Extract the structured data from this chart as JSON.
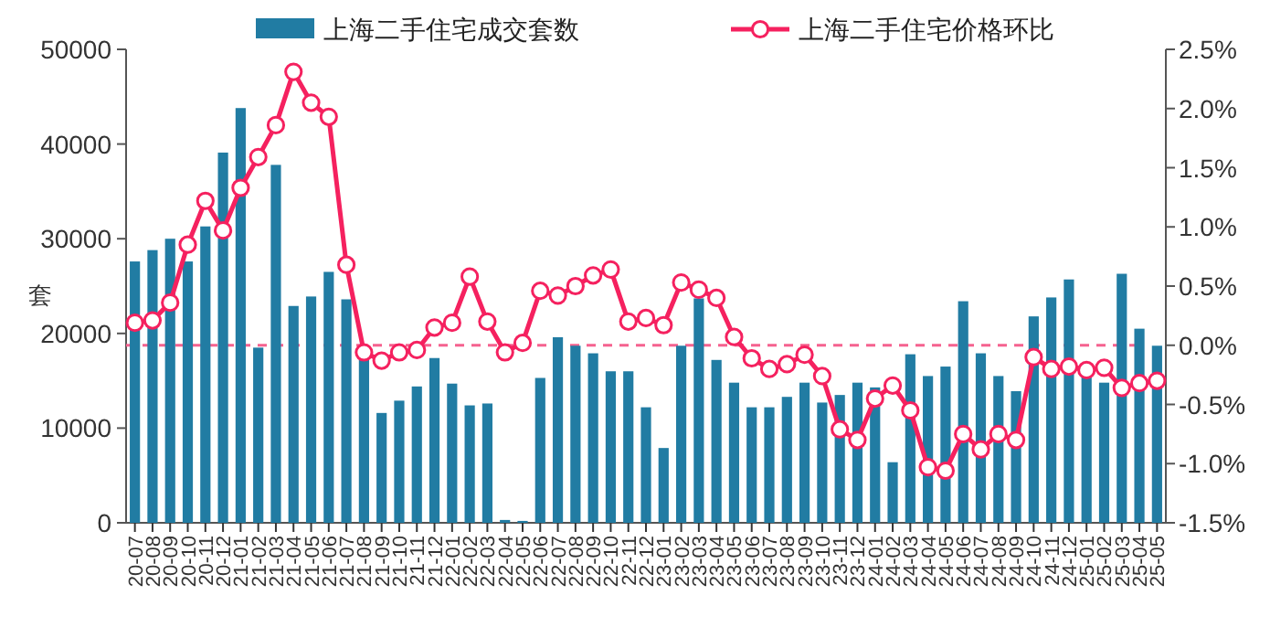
{
  "chart_data": {
    "type": "bar",
    "ylabel": "套",
    "legend": "top",
    "categories": [
      "20-07",
      "20-08",
      "20-09",
      "20-10",
      "20-11",
      "20-12",
      "21-01",
      "21-02",
      "21-03",
      "21-04",
      "21-05",
      "21-06",
      "21-07",
      "21-08",
      "21-09",
      "21-10",
      "21-11",
      "21-12",
      "22-01",
      "22-02",
      "22-03",
      "22-04",
      "22-05",
      "22-06",
      "22-07",
      "22-08",
      "22-09",
      "22-10",
      "22-11",
      "22-12",
      "23-01",
      "23-02",
      "23-03",
      "23-04",
      "23-05",
      "23-06",
      "23-07",
      "23-08",
      "23-09",
      "23-10",
      "23-11",
      "23-12",
      "24-01",
      "24-02",
      "24-03",
      "24-04",
      "24-05",
      "24-06",
      "24-07",
      "24-08",
      "24-09",
      "24-10",
      "24-11",
      "24-12",
      "25-01",
      "25-02",
      "25-03",
      "25-04",
      "25-05"
    ],
    "series": [
      {
        "name": "上海二手住宅成交套数",
        "color": "#217ca3",
        "values": [
          27600,
          28800,
          30000,
          27600,
          31300,
          39100,
          43800,
          18500,
          37800,
          22900,
          23900,
          26500,
          23600,
          17500,
          11600,
          12900,
          14400,
          17400,
          14700,
          12400,
          12600,
          300,
          200,
          15300,
          19600,
          18700,
          17900,
          16000,
          16000,
          12200,
          7900,
          18700,
          23700,
          17200,
          14800,
          12200,
          12200,
          13300,
          14800,
          12700,
          13500,
          14800,
          14300,
          6400,
          17800,
          15500,
          16500,
          23400,
          17900,
          15500,
          13900,
          21800,
          23800,
          25700,
          15800,
          14800,
          26300,
          20500,
          18700
        ]
      },
      {
        "name": "上海二手住宅价格环比",
        "type": "line",
        "axis": "y2",
        "marker": "circle",
        "color": "#f5215f",
        "values": [
          0.19,
          0.21,
          0.36,
          0.85,
          1.22,
          0.97,
          1.33,
          1.59,
          1.86,
          2.31,
          2.05,
          1.93,
          0.68,
          -0.06,
          -0.13,
          -0.06,
          -0.04,
          0.15,
          0.19,
          0.58,
          0.2,
          -0.06,
          0.02,
          0.46,
          0.42,
          0.5,
          0.59,
          0.64,
          0.2,
          0.23,
          0.17,
          0.53,
          0.47,
          0.4,
          0.07,
          -0.11,
          -0.2,
          -0.16,
          -0.08,
          -0.26,
          -0.71,
          -0.8,
          -0.45,
          -0.34,
          -0.55,
          -1.03,
          -1.06,
          -0.75,
          -0.88,
          -0.75,
          -0.8,
          -0.1,
          -0.2,
          -0.18,
          -0.21,
          -0.19,
          -0.36,
          -0.32,
          -0.3
        ]
      }
    ],
    "ylim": [
      0,
      50000
    ],
    "yticks": [
      0,
      10000,
      20000,
      30000,
      40000,
      50000
    ],
    "y2lim": [
      -1.5,
      2.5
    ],
    "y2ticks": [
      {
        "value": -1.5,
        "label": "-1.5%"
      },
      {
        "value": -1.0,
        "label": "-1.0%"
      },
      {
        "value": -0.5,
        "label": "-0.5%"
      },
      {
        "value": 0,
        "label": "0.0%"
      },
      {
        "value": 0.5,
        "label": "0.5%"
      },
      {
        "value": 1.0,
        "label": "1.0%"
      },
      {
        "value": 1.5,
        "label": "1.5%"
      },
      {
        "value": 2.0,
        "label": "2.0%"
      },
      {
        "value": 2.5,
        "label": "2.5%"
      }
    ],
    "ref_lines": [
      {
        "axis": "y2",
        "value": 0,
        "color": "#f5628f",
        "line_style": "dashed"
      }
    ]
  }
}
